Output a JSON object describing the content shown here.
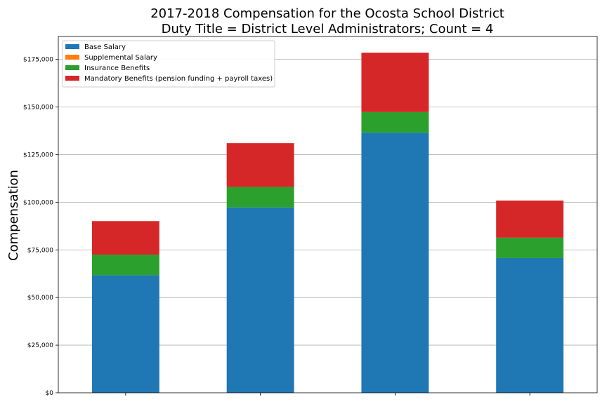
{
  "chart_data": {
    "type": "bar",
    "stacked": true,
    "title": "2017-2018 Compensation for the Ocosta School District",
    "subtitle": "Duty Title = District Level Administrators; Count = 4",
    "xlabel": "",
    "ylabel": "Compensation",
    "ylim": [
      0,
      187000
    ],
    "yticks": [
      0,
      25000,
      50000,
      75000,
      100000,
      125000,
      150000,
      175000
    ],
    "ytick_labels": [
      "$0",
      "$25,000",
      "$50,000",
      "$75,000",
      "$100,000",
      "$125,000",
      "$150,000",
      "$175,000"
    ],
    "categories": [
      "",
      "",
      "",
      ""
    ],
    "grid": "horizontal",
    "legend_position": "top-left",
    "series": [
      {
        "name": "Base Salary",
        "color": "#1f77b4",
        "values": [
          61700,
          97300,
          136500,
          70700
        ]
      },
      {
        "name": "Supplemental Salary",
        "color": "#ff7f0e",
        "values": [
          0,
          0,
          0,
          0
        ]
      },
      {
        "name": "Insurance Benefits",
        "color": "#2ca02c",
        "values": [
          10800,
          10700,
          10800,
          10700
        ]
      },
      {
        "name": "Mandatory Benefits (pension funding + payroll taxes)",
        "color": "#d62728",
        "values": [
          17600,
          23000,
          31200,
          19500
        ]
      }
    ]
  }
}
